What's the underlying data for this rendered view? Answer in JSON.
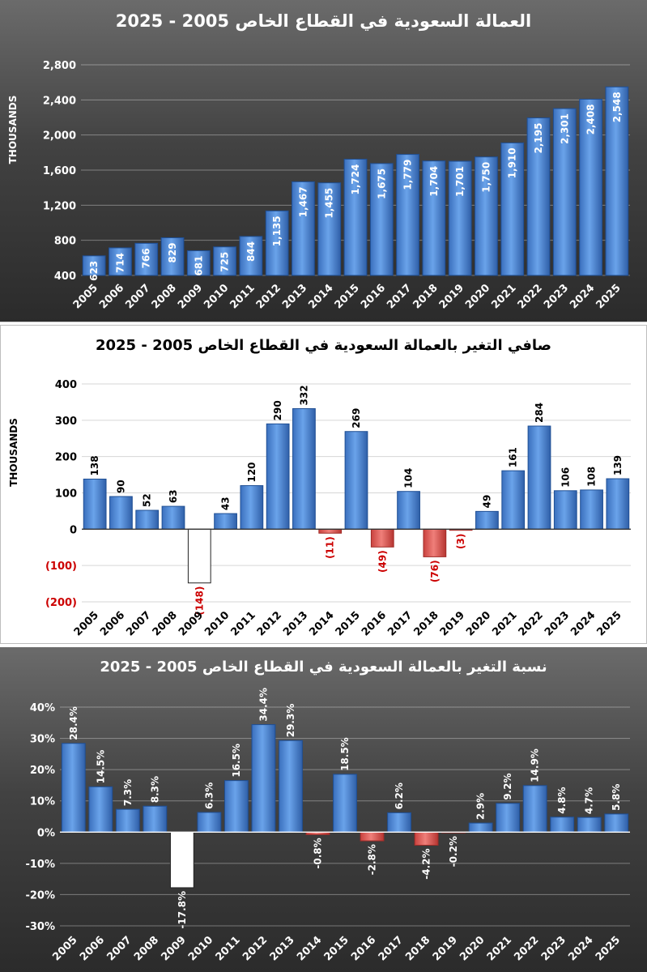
{
  "chart_data": [
    {
      "type": "bar",
      "title": "العمالة السعودية في القطاع الخاص 2005 - 2025",
      "ylabel": "THOUSANDS",
      "categories": [
        "2005",
        "2006",
        "2007",
        "2008",
        "2009",
        "2010",
        "2011",
        "2012",
        "2013",
        "2014",
        "2015",
        "2016",
        "2017",
        "2018",
        "2019",
        "2020",
        "2021",
        "2022",
        "2023",
        "2024",
        "2025"
      ],
      "values": [
        623,
        714,
        766,
        829,
        681,
        725,
        844,
        1135,
        1467,
        1455,
        1724,
        1675,
        1779,
        1704,
        1701,
        1750,
        1910,
        2195,
        2301,
        2408,
        2548
      ],
      "labels": [
        "623",
        "714",
        "766",
        "829",
        "681",
        "725",
        "844",
        "1,135",
        "1,467",
        "1,455",
        "1,724",
        "1,675",
        "1,779",
        "1,704",
        "1,701",
        "1,750",
        "1,910",
        "2,195",
        "2,301",
        "2,408",
        "2,548"
      ],
      "yticks": [
        400,
        800,
        1200,
        1600,
        2000,
        2400,
        2800
      ],
      "ytick_labels": [
        "400",
        "800",
        "1,200",
        "1,600",
        "2,000",
        "2,400",
        "2,800"
      ],
      "ylim": [
        400,
        2800
      ],
      "grid": true,
      "colors": {
        "bar": "#4a86d4",
        "bar_dark": "#2f5fa8",
        "text": "#ffffff"
      }
    },
    {
      "type": "bar",
      "title": "صافي التغير بالعمالة السعودية في القطاع الخاص 2005 - 2025",
      "ylabel": "THOUSANDS",
      "categories": [
        "2005",
        "2006",
        "2007",
        "2008",
        "2009",
        "2010",
        "2011",
        "2012",
        "2013",
        "2014",
        "2015",
        "2016",
        "2017",
        "2018",
        "2019",
        "2020",
        "2021",
        "2022",
        "2023",
        "2024",
        "2025"
      ],
      "values": [
        138,
        90,
        52,
        63,
        -148,
        43,
        120,
        290,
        332,
        -11,
        269,
        -49,
        104,
        -76,
        -3,
        49,
        161,
        284,
        106,
        108,
        139
      ],
      "labels": [
        "138",
        "90",
        "52",
        "63",
        "(148)",
        "43",
        "120",
        "290",
        "332",
        "(11)",
        "269",
        "(49)",
        "104",
        "(76)",
        "(3)",
        "49",
        "161",
        "284",
        "106",
        "108",
        "139"
      ],
      "yticks": [
        -200,
        -100,
        0,
        100,
        200,
        300,
        400
      ],
      "ytick_labels": [
        "(200)",
        "(100)",
        "0",
        "100",
        "200",
        "300",
        "400"
      ],
      "ylim": [
        -200,
        400
      ],
      "grid": true,
      "colors": {
        "bar": "#4a86d4",
        "negative": "#d9534f",
        "highlight": "#ffffff",
        "negative_text": "#cc0000"
      }
    },
    {
      "type": "bar",
      "title": "نسبة التغير بالعمالة السعودية في القطاع الخاص 2005 - 2025",
      "categories": [
        "2005",
        "2006",
        "2007",
        "2008",
        "2009",
        "2010",
        "2011",
        "2012",
        "2013",
        "2014",
        "2015",
        "2016",
        "2017",
        "2018",
        "2019",
        "2020",
        "2021",
        "2022",
        "2023",
        "2024",
        "2025"
      ],
      "values": [
        28.4,
        14.5,
        7.3,
        8.3,
        -17.8,
        6.3,
        16.5,
        34.4,
        29.3,
        -0.8,
        18.5,
        -2.8,
        6.2,
        -4.2,
        -0.2,
        2.9,
        9.2,
        14.9,
        4.8,
        4.7,
        5.8
      ],
      "labels": [
        "28.4%",
        "14.5%",
        "7.3%",
        "8.3%",
        "-17.8%",
        "6.3%",
        "16.5%",
        "34.4%",
        "29.3%",
        "-0.8%",
        "18.5%",
        "-2.8%",
        "6.2%",
        "-4.2%",
        "-0.2%",
        "2.9%",
        "9.2%",
        "14.9%",
        "4.8%",
        "4.7%",
        "5.8%"
      ],
      "yticks": [
        -30,
        -20,
        -10,
        0,
        10,
        20,
        30,
        40
      ],
      "ytick_labels": [
        "-30%",
        "-20%",
        "-10%",
        "0%",
        "10%",
        "20%",
        "30%",
        "40%"
      ],
      "ylim": [
        -30,
        40
      ],
      "grid": true,
      "colors": {
        "bar": "#4a86d4",
        "negative": "#d9534f",
        "highlight": "#ffffff",
        "text": "#ffffff"
      }
    }
  ]
}
